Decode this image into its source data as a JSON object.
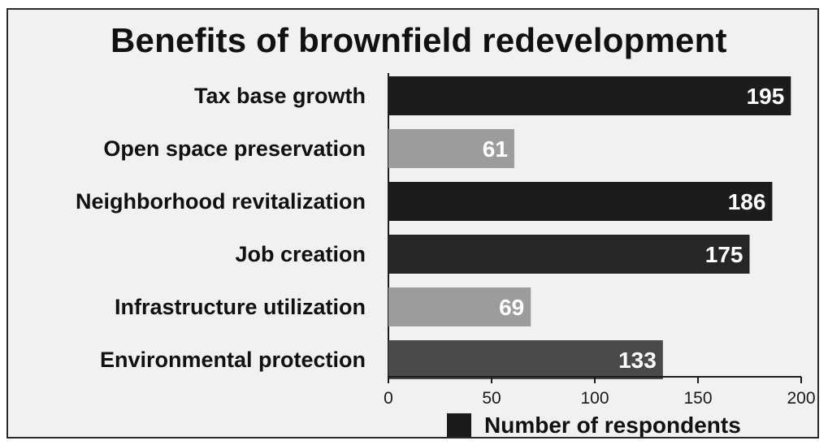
{
  "chart_data": {
    "type": "bar",
    "orientation": "horizontal",
    "title": "Benefits of brownfield redevelopment",
    "categories": [
      "Tax base growth",
      "Open space preservation",
      "Neighborhood revitalization",
      "Job creation",
      "Infrastructure utilization",
      "Environmental protection"
    ],
    "values": [
      195,
      61,
      186,
      175,
      69,
      133
    ],
    "bar_colors": [
      "#1c1c1c",
      "#9c9c9c",
      "#1c1c1c",
      "#262626",
      "#9c9c9c",
      "#4a4a4a"
    ],
    "xlim": [
      0,
      200
    ],
    "xticks": [
      0,
      50,
      100,
      150,
      200
    ],
    "legend": {
      "label": "Number of respondents",
      "color": "#1a1a1a",
      "position": "bottom"
    },
    "grid": false
  }
}
